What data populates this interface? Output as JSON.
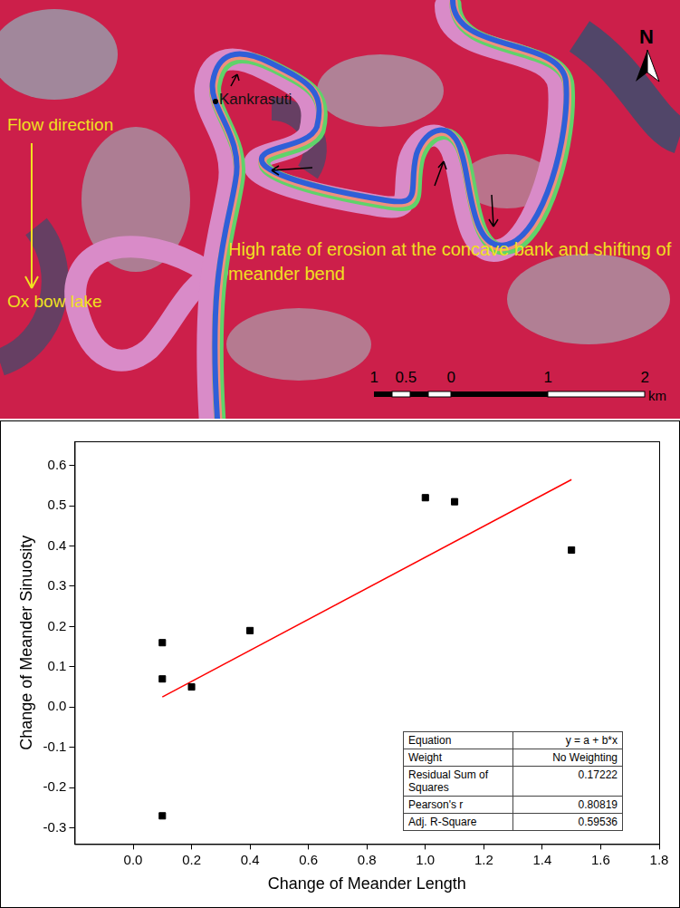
{
  "map": {
    "north": "N",
    "place": "Kankrasuti",
    "flow_label": "Flow direction",
    "oxbow_label": "Ox bow lake",
    "annotation": "High rate of erosion at the concave bank and shifting of meander bend",
    "scale_bar": {
      "labels": [
        "1",
        "0.5",
        "0",
        "1",
        "2"
      ],
      "unit": "km"
    }
  },
  "chart_data": {
    "type": "scatter",
    "x_label": "Change of Meander Length",
    "y_label": "Change of Meander Sinuosity",
    "series": [
      {
        "type": "scatter",
        "marker": "square",
        "color": "#000000",
        "x": [
          0.1,
          0.1,
          0.1,
          0.2,
          0.4,
          1.0,
          1.1,
          1.5
        ],
        "values": [
          0.16,
          0.07,
          -0.27,
          0.05,
          0.19,
          0.52,
          0.51,
          0.39
        ]
      },
      {
        "type": "line",
        "line_style": "solid",
        "color": "#ff0000",
        "x": [
          0.1,
          1.5
        ],
        "values": [
          0.025,
          0.565
        ]
      }
    ],
    "xlim": [
      -0.2,
      1.8
    ],
    "xticks": [
      {
        "value": 0,
        "label": "0.0"
      },
      0.2,
      0.4,
      0.6,
      0.8,
      {
        "value": 1,
        "label": "1.0"
      },
      1.2,
      1.4,
      1.6,
      1.8
    ],
    "ylim": [
      -0.34,
      0.66
    ],
    "yticks": [
      -0.3,
      -0.2,
      -0.1,
      {
        "value": 0,
        "label": "0.0"
      },
      0.1,
      0.2,
      0.3,
      0.4,
      0.5,
      0.6
    ],
    "grid": false,
    "legend": false,
    "stats_table": {
      "rows": [
        [
          "Equation",
          "y = a + b*x"
        ],
        [
          "Weight",
          "No Weighting"
        ],
        [
          "Residual Sum of Squares",
          "0.17222"
        ],
        [
          "Pearson's r",
          "0.80819"
        ],
        [
          "Adj. R-Square",
          "0.59536"
        ]
      ]
    }
  }
}
